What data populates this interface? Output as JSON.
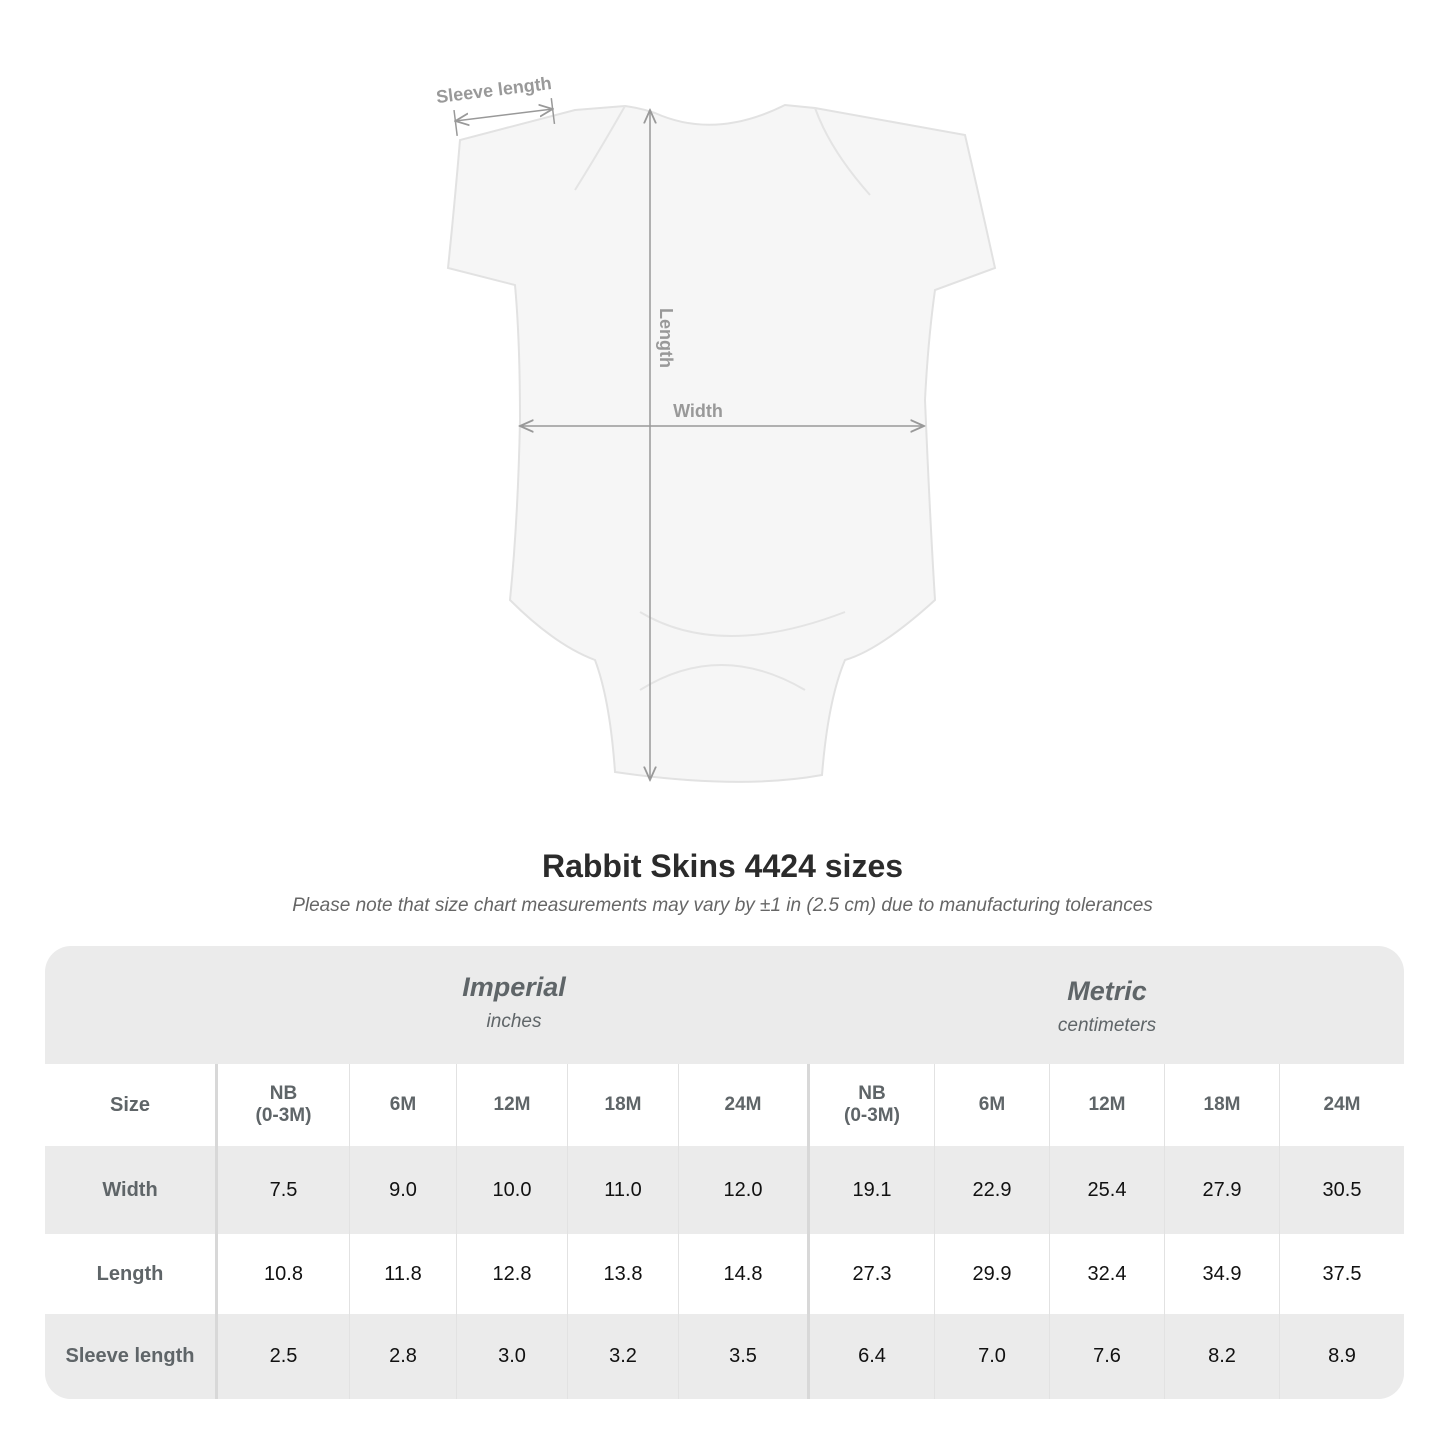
{
  "diagram": {
    "labels": {
      "sleeve": "Sleeve length",
      "length": "Length",
      "width": "Width"
    }
  },
  "title": "Rabbit Skins 4424 sizes",
  "note": "Please note that size chart measurements may vary by ±1 in (2.5 cm) due to manufacturing tolerances",
  "table": {
    "imperial": {
      "name": "Imperial",
      "unit": "inches"
    },
    "metric": {
      "name": "Metric",
      "unit": "centimeters"
    },
    "size_label": "Size",
    "sizes": [
      "NB\n(0-3M)",
      "6M",
      "12M",
      "18M",
      "24M"
    ],
    "rows": [
      {
        "label": "Width",
        "imperial": [
          "7.5",
          "9.0",
          "10.0",
          "11.0",
          "12.0"
        ],
        "metric": [
          "19.1",
          "22.9",
          "25.4",
          "27.9",
          "30.5"
        ]
      },
      {
        "label": "Length",
        "imperial": [
          "10.8",
          "11.8",
          "12.8",
          "13.8",
          "14.8"
        ],
        "metric": [
          "27.3",
          "29.9",
          "32.4",
          "34.9",
          "37.5"
        ]
      },
      {
        "label": "Sleeve length",
        "imperial": [
          "2.5",
          "2.8",
          "3.0",
          "3.2",
          "3.5"
        ],
        "metric": [
          "6.4",
          "7.0",
          "7.6",
          "8.2",
          "8.9"
        ]
      }
    ]
  }
}
